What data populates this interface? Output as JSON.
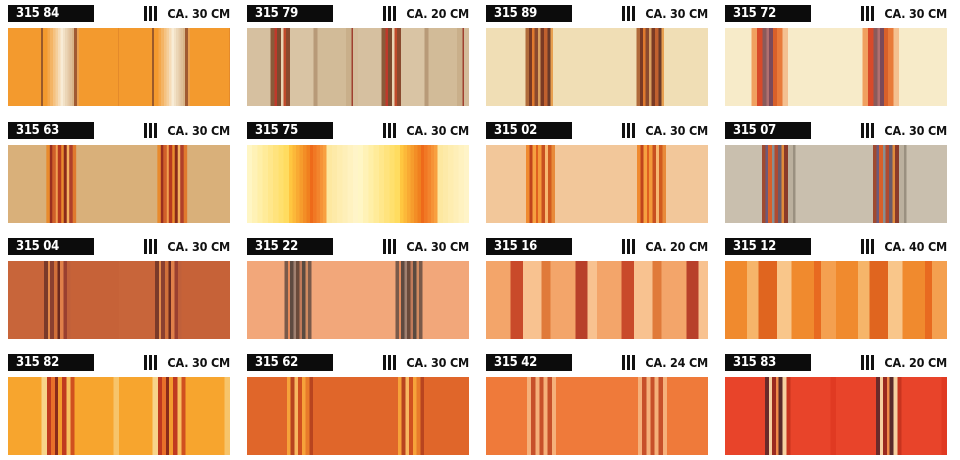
{
  "swatches": [
    {
      "code": "315 84",
      "repeat": "CA. 30 CM",
      "pattern": "orange-cream-fade",
      "colors": [
        "#f39a2e",
        "#f7e6cc",
        "#e0b98a"
      ]
    },
    {
      "code": "315 79",
      "repeat": "CA. 20 CM",
      "pattern": "beige-brown-stripes",
      "colors": [
        "#d8c3a3",
        "#8a4a2f",
        "#c0392b"
      ]
    },
    {
      "code": "315 89",
      "repeat": "CA. 30 CM",
      "pattern": "cream-brown-stripes",
      "colors": [
        "#f0deb5",
        "#8a4a2f",
        "#d67a2e"
      ]
    },
    {
      "code": "315 72",
      "repeat": "CA. 30 CM",
      "pattern": "cream-red-stripes",
      "colors": [
        "#f7ebc9",
        "#d84a2a",
        "#8b5a5a"
      ]
    },
    {
      "code": "315 63",
      "repeat": "CA. 30 CM",
      "pattern": "tan-red-stripes",
      "colors": [
        "#d9b07a",
        "#b8391f",
        "#e88b2e"
      ]
    },
    {
      "code": "315 75",
      "repeat": "CA. 30 CM",
      "pattern": "yellow-orange-gradient",
      "colors": [
        "#fff3b0",
        "#f07a1f",
        "#e8451b"
      ]
    },
    {
      "code": "315 02",
      "repeat": "CA. 30 CM",
      "pattern": "peach-orange-stripes",
      "colors": [
        "#f2c79a",
        "#e86a1f",
        "#c0441c"
      ]
    },
    {
      "code": "315 07",
      "repeat": "CA. 30 CM",
      "pattern": "grey-multi-stripes",
      "colors": [
        "#c9bfae",
        "#a04a30",
        "#6e5a7a"
      ]
    },
    {
      "code": "315 04",
      "repeat": "CA. 30 CM",
      "pattern": "rust-stripes",
      "colors": [
        "#c8653a",
        "#7a3a2a",
        "#e28a4a"
      ]
    },
    {
      "code": "315 22",
      "repeat": "CA. 30 CM",
      "pattern": "salmon-brown-stripes",
      "colors": [
        "#f2a77a",
        "#7a5a4a",
        "#a08070"
      ]
    },
    {
      "code": "315 16",
      "repeat": "CA. 20 CM",
      "pattern": "orange-even-stripes",
      "colors": [
        "#f3a56a",
        "#c94a2a",
        "#f8c290"
      ]
    },
    {
      "code": "315 12",
      "repeat": "CA. 40 CM",
      "pattern": "orange-fine-stripes",
      "colors": [
        "#f08a2e",
        "#f6b56a",
        "#e0651f"
      ]
    },
    {
      "code": "315 82",
      "repeat": "CA. 30 CM",
      "pattern": "yellow-orange-red-stripes",
      "colors": [
        "#f7a52e",
        "#c0391f",
        "#f7d38a"
      ]
    },
    {
      "code": "315 62",
      "repeat": "CA. 30 CM",
      "pattern": "burnt-orange-stripes",
      "colors": [
        "#e0662a",
        "#f6a23a",
        "#b8441f"
      ]
    },
    {
      "code": "315 42",
      "repeat": "CA. 24 CM",
      "pattern": "orange-pinstripes",
      "colors": [
        "#ef7a3a",
        "#f5b07a",
        "#c7502a"
      ]
    },
    {
      "code": "315 83",
      "repeat": "CA. 20 CM",
      "pattern": "red-multi-stripes",
      "colors": [
        "#e8442a",
        "#6a2a2a",
        "#f6d0a0"
      ]
    }
  ]
}
